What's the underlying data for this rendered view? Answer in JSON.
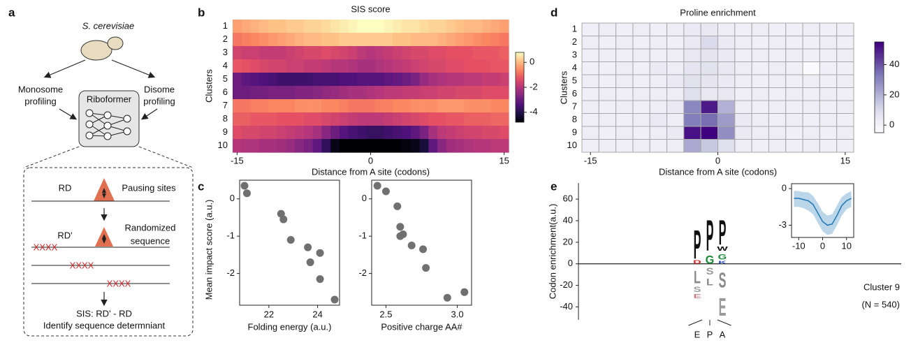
{
  "panel_labels": [
    "a",
    "b",
    "c",
    "d",
    "e"
  ],
  "diagram": {
    "organism": "S. cerevisiae",
    "monosome": [
      "Monosome",
      "profiling"
    ],
    "disome": [
      "Disome",
      "profiling"
    ],
    "model": "Riboformer",
    "rd": "RD",
    "pausing": "Pausing sites",
    "rd_prime": "RD'",
    "randomized": [
      "Randomized",
      "sequence"
    ],
    "masks": [
      "XXXX",
      "XXXX",
      "XXXX"
    ],
    "sis": "SIS: RD' - RD",
    "identify": "Identify sequence determniant"
  },
  "chart_data": [
    {
      "type": "heatmap",
      "title": "SIS score",
      "x_label": "Distance from A site (codons)",
      "y_label": "Clusters",
      "rows": [
        "1",
        "2",
        "3",
        "4",
        "5",
        "6",
        "7",
        "8",
        "9",
        "10"
      ],
      "x": [
        -15,
        -14,
        -13,
        -12,
        -11,
        -10,
        -9,
        -8,
        -7,
        -6,
        -5,
        -4,
        -3,
        -2,
        -1,
        0,
        1,
        2,
        3,
        4,
        5,
        6,
        7,
        8,
        9,
        10,
        11,
        12,
        13,
        14,
        15
      ],
      "xlim": [
        -15.5,
        15.5
      ],
      "xticks": [
        -15,
        0,
        15
      ],
      "colormap": "magma",
      "clim": [
        -4.8,
        0.8
      ],
      "colorbar_ticks": [
        0,
        -2,
        -4
      ],
      "grid": false,
      "values": [
        [
          -0.3,
          -0.2,
          -0.1,
          0,
          0.1,
          0.1,
          0.2,
          0.2,
          0.3,
          0.3,
          0.4,
          0.5,
          0.6,
          0.7,
          0.8,
          0.8,
          0.8,
          0.7,
          0.6,
          0.5,
          0.5,
          0.4,
          0.3,
          0.3,
          0.2,
          0.1,
          0,
          0,
          -0.1,
          -0.2,
          -0.3
        ],
        [
          -0.8,
          -0.7,
          -0.6,
          -0.5,
          -0.4,
          -0.3,
          -0.2,
          -0.1,
          0,
          0,
          0.1,
          0.1,
          0.2,
          0.2,
          0.2,
          0.2,
          0.2,
          0.2,
          0.1,
          0.1,
          0,
          0,
          0,
          -0.1,
          -0.2,
          -0.3,
          -0.4,
          -0.5,
          -0.6,
          -0.7,
          -0.8
        ],
        [
          -1.6,
          -1.7,
          -1.7,
          -1.8,
          -1.8,
          -1.8,
          -1.7,
          -1.6,
          -1.5,
          -1.5,
          -1.4,
          -1.5,
          -1.6,
          -1.7,
          -1.9,
          -2.0,
          -1.9,
          -1.8,
          -1.7,
          -1.6,
          -1.5,
          -1.5,
          -1.4,
          -1.4,
          -1.3,
          -1.3,
          -1.3,
          -1.2,
          -1.2,
          -1.2,
          -1.1
        ],
        [
          -1.2,
          -1.3,
          -1.4,
          -1.5,
          -1.6,
          -1.6,
          -1.7,
          -1.7,
          -1.8,
          -1.8,
          -1.9,
          -2.0,
          -2.0,
          -2.1,
          -2.2,
          -2.2,
          -2.1,
          -2.0,
          -1.9,
          -1.8,
          -1.7,
          -1.6,
          -1.5,
          -1.5,
          -1.4,
          -1.4,
          -1.3,
          -1.3,
          -1.3,
          -1.2,
          -1.2
        ],
        [
          -3.0,
          -3.2,
          -3.3,
          -3.4,
          -3.5,
          -3.6,
          -3.6,
          -3.6,
          -3.6,
          -3.5,
          -3.5,
          -3.5,
          -3.4,
          -3.4,
          -3.3,
          -3.3,
          -3.3,
          -3.2,
          -3.1,
          -3.0,
          -2.8,
          -2.4,
          -2.2,
          -2.1,
          -2.0,
          -2.0,
          -1.9,
          -1.9,
          -1.8,
          -1.8,
          -1.7
        ],
        [
          -3.0,
          -3.0,
          -2.9,
          -2.9,
          -2.8,
          -2.8,
          -2.8,
          -2.7,
          -2.7,
          -2.6,
          -2.5,
          -2.4,
          -2.3,
          -2.2,
          -2.2,
          -2.1,
          -2.0,
          -1.9,
          -1.9,
          -1.8,
          -1.8,
          -1.7,
          -1.7,
          -1.6,
          -1.6,
          -1.5,
          -1.5,
          -1.5,
          -1.4,
          -1.4,
          -1.4
        ],
        [
          -0.8,
          -0.8,
          -0.7,
          -0.7,
          -0.6,
          -0.6,
          -0.6,
          -0.5,
          -0.5,
          -0.5,
          -0.6,
          -0.6,
          -0.7,
          -0.8,
          -0.8,
          -0.8,
          -0.7,
          -0.7,
          -0.6,
          -0.6,
          -0.5,
          -0.5,
          -0.5,
          -0.4,
          -0.4,
          -0.4,
          -0.5,
          -0.5,
          -0.5,
          -0.6,
          -0.6
        ],
        [
          -1.1,
          -1.1,
          -1.2,
          -1.2,
          -1.2,
          -1.3,
          -1.3,
          -1.3,
          -1.4,
          -1.4,
          -1.5,
          -1.6,
          -1.7,
          -1.8,
          -1.9,
          -1.9,
          -1.9,
          -1.8,
          -1.7,
          -1.6,
          -1.5,
          -1.4,
          -1.3,
          -1.3,
          -1.2,
          -1.2,
          -1.1,
          -1.1,
          -1.1,
          -1.0,
          -1.0
        ],
        [
          -1.4,
          -1.5,
          -1.5,
          -1.6,
          -1.6,
          -1.7,
          -1.8,
          -1.9,
          -2.0,
          -2.2,
          -2.6,
          -3.0,
          -3.3,
          -3.5,
          -3.6,
          -3.7,
          -3.7,
          -3.6,
          -3.5,
          -3.4,
          -3.2,
          -2.8,
          -2.2,
          -1.9,
          -1.8,
          -1.7,
          -1.6,
          -1.6,
          -1.5,
          -1.5,
          -1.4
        ],
        [
          -2.0,
          -2.1,
          -2.1,
          -2.2,
          -2.2,
          -2.3,
          -2.4,
          -2.6,
          -2.8,
          -3.2,
          -3.8,
          -4.6,
          -4.8,
          -4.8,
          -4.8,
          -4.8,
          -4.8,
          -4.8,
          -4.8,
          -4.7,
          -4.6,
          -4.2,
          -3.2,
          -2.6,
          -2.3,
          -2.2,
          -2.1,
          -2.0,
          -2.0,
          -1.9,
          -1.9
        ]
      ]
    },
    {
      "type": "heatmap",
      "title": "Proline enrichment",
      "x_label": "Distance from  A site (codons)",
      "y_label": "Clusters",
      "rows": [
        "1",
        "2",
        "3",
        "4",
        "5",
        "6",
        "7",
        "8",
        "9",
        "10"
      ],
      "x": [
        -15,
        -13,
        -11,
        -9,
        -7,
        -5,
        -3,
        -1,
        1,
        3,
        5,
        7,
        9,
        11,
        13,
        15
      ],
      "xlim": [
        -16,
        16
      ],
      "xticks": [
        -15,
        0,
        15
      ],
      "colormap": "purples",
      "clim": [
        -5,
        55
      ],
      "colorbar_ticks": [
        0,
        20,
        40
      ],
      "grid": true,
      "values": [
        [
          2,
          3,
          2,
          3,
          2,
          3,
          4,
          5,
          3,
          2,
          3,
          2,
          2,
          3,
          2,
          2
        ],
        [
          3,
          2,
          3,
          2,
          3,
          2,
          4,
          10,
          4,
          3,
          2,
          3,
          2,
          2,
          3,
          2
        ],
        [
          2,
          3,
          2,
          3,
          2,
          3,
          5,
          6,
          4,
          2,
          3,
          2,
          3,
          2,
          2,
          3
        ],
        [
          2,
          2,
          3,
          2,
          4,
          3,
          6,
          7,
          5,
          3,
          2,
          3,
          2,
          -4,
          2,
          2
        ],
        [
          3,
          2,
          3,
          2,
          3,
          4,
          7,
          6,
          4,
          3,
          2,
          3,
          2,
          3,
          2,
          3
        ],
        [
          2,
          3,
          2,
          3,
          3,
          3,
          8,
          5,
          5,
          2,
          3,
          2,
          3,
          2,
          3,
          2
        ],
        [
          3,
          2,
          3,
          2,
          3,
          4,
          30,
          50,
          20,
          3,
          2,
          3,
          2,
          3,
          2,
          3
        ],
        [
          2,
          3,
          2,
          3,
          4,
          3,
          32,
          35,
          25,
          4,
          3,
          2,
          3,
          2,
          3,
          2
        ],
        [
          3,
          2,
          3,
          2,
          3,
          4,
          52,
          57,
          28,
          4,
          3,
          3,
          2,
          3,
          2,
          3
        ],
        [
          2,
          3,
          2,
          3,
          2,
          3,
          22,
          15,
          8,
          3,
          2,
          3,
          2,
          3,
          2,
          2
        ]
      ]
    },
    {
      "type": "scatter",
      "x_label": "Folding energy (a.u.)",
      "y_label": "Mean impact score (a.u.)",
      "color": "#707070",
      "x": [
        21.0,
        21.1,
        22.5,
        22.6,
        22.9,
        23.6,
        23.7,
        24.1,
        24.1,
        24.7
      ],
      "values": [
        0.35,
        0.15,
        -0.4,
        -0.55,
        -1.1,
        -1.3,
        -1.7,
        -1.45,
        -2.15,
        -2.7
      ],
      "xlim": [
        20.8,
        24.9
      ],
      "xticks": [
        22,
        24
      ],
      "ylim": [
        -2.85,
        0.5
      ],
      "yticks": [
        0,
        -1,
        -2
      ]
    },
    {
      "type": "scatter",
      "x_label": "Positive charge AA#",
      "color": "#707070",
      "x": [
        2.44,
        2.5,
        2.58,
        2.6,
        2.6,
        2.62,
        2.68,
        2.76,
        2.78,
        2.93,
        3.05
      ],
      "values": [
        0.35,
        0.2,
        -0.2,
        -0.75,
        -1.0,
        -0.95,
        -1.25,
        -1.35,
        -1.85,
        -2.65,
        -2.5
      ],
      "xlim": [
        2.4,
        3.1
      ],
      "xticks": [
        2.5,
        {
          "value": 3,
          "label": "3.0"
        }
      ],
      "ylim": [
        -2.85,
        0.5
      ],
      "yticks": [
        0,
        -1,
        -2
      ]
    },
    {
      "type": "logo",
      "y_label": "Codon enrichment(a.u.)",
      "ylim": [
        -52,
        75
      ],
      "yticks": [
        60,
        40,
        20,
        0,
        -20,
        -40
      ],
      "positions": [
        "E",
        "P",
        "A"
      ],
      "stacks": [
        {
          "letters": [
            "D",
            "P",
            "L",
            "S",
            "E"
          ],
          "values": [
            5,
            42,
            -18,
            -8,
            -6
          ],
          "colors": [
            "#d62728",
            "#111111",
            "#8a8a8a",
            "#9a9a9a",
            "#c98080"
          ]
        },
        {
          "letters": [
            "G",
            "P",
            "S",
            "L"
          ],
          "values": [
            12,
            45,
            -10,
            -10
          ],
          "colors": [
            "#1b8a3a",
            "#111111",
            "#9a9a9a",
            "#8a8a8a"
          ]
        },
        {
          "letters": [
            "K",
            "G",
            "W",
            "P",
            "S",
            "E"
          ],
          "values": [
            4,
            8,
            6,
            36,
            -22,
            -26
          ],
          "colors": [
            "#1f3fbf",
            "#1b8a3a",
            "#111111",
            "#111111",
            "#8a8a8a",
            "#9a9a9a"
          ]
        }
      ],
      "annotations": [
        "Cluster 9",
        "(N = 540)"
      ],
      "inset": {
        "type": "line",
        "color": "#1f77b4",
        "x": [
          -12,
          -10,
          -8,
          -6,
          -4,
          -2,
          0,
          2,
          4,
          6,
          8,
          10,
          12
        ],
        "values": [
          -0.8,
          -0.8,
          -0.9,
          -1.0,
          -1.3,
          -2.0,
          -2.7,
          -3.0,
          -2.9,
          -2.2,
          -1.4,
          -1.0,
          -0.8
        ],
        "lower": [
          -1.5,
          -1.5,
          -1.6,
          -1.8,
          -2.1,
          -2.8,
          -3.5,
          -3.8,
          -3.7,
          -3.0,
          -2.2,
          -1.7,
          -1.5
        ],
        "upper": [
          -0.2,
          -0.2,
          -0.3,
          -0.3,
          -0.6,
          -1.2,
          -1.9,
          -2.2,
          -2.1,
          -1.4,
          -0.7,
          -0.4,
          -0.2
        ],
        "xlim": [
          -13,
          13
        ],
        "ylim": [
          -4,
          0.4
        ],
        "xticks": [
          -10,
          0,
          10
        ],
        "yticks": [
          0,
          -3
        ]
      }
    }
  ]
}
